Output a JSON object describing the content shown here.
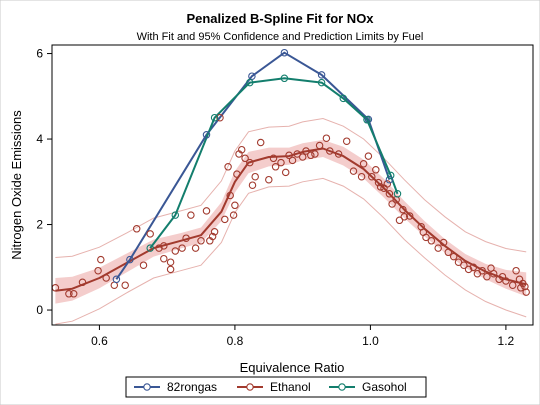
{
  "chart_data": {
    "type": "scatter",
    "title": "Penalized B-Spline Fit for NOx",
    "subtitle": "With Fit and 95% Confidence and Prediction Limits by Fuel",
    "xlabel": "Equivalence Ratio",
    "ylabel": "Nitrogen Oxide Emissions",
    "xlim": [
      0.53,
      1.24
    ],
    "ylim": [
      -0.35,
      6.2
    ],
    "xticks": [
      0.6,
      0.8,
      1.0,
      1.2
    ],
    "yticks": [
      0,
      2,
      4,
      6
    ],
    "xtick_labels": [
      "0.6",
      "0.8",
      "1.0",
      "1.2"
    ],
    "ytick_labels": [
      "0",
      "2",
      "4",
      "6"
    ],
    "grid": false,
    "legend_position": "bottom",
    "colors": {
      "82rongas": "#3A5795",
      "Ethanol": "#A23A2E",
      "Gasohol": "#137E6D",
      "confidence_band": "#F3C8C6",
      "prediction_limits": "#E6B2AE"
    },
    "series": [
      {
        "name": "82rongas",
        "x": [
          0.625,
          0.645,
          0.758,
          0.825,
          0.873,
          0.928,
          0.997,
          1.028
        ],
        "y": [
          0.72,
          1.18,
          4.1,
          5.47,
          6.02,
          5.5,
          4.46,
          3.05
        ],
        "points": [
          [
            0.625,
            0.72
          ],
          [
            0.645,
            1.18
          ],
          [
            0.758,
            4.1
          ],
          [
            0.825,
            5.47
          ],
          [
            0.873,
            6.02
          ],
          [
            0.928,
            5.5
          ],
          [
            0.997,
            4.46
          ],
          [
            1.028,
            3.05
          ]
        ]
      },
      {
        "name": "Ethanol",
        "points": [
          [
            0.535,
            0.52
          ],
          [
            0.555,
            0.38
          ],
          [
            0.562,
            0.38
          ],
          [
            0.575,
            0.65
          ],
          [
            0.598,
            0.92
          ],
          [
            0.602,
            1.18
          ],
          [
            0.61,
            0.75
          ],
          [
            0.622,
            0.58
          ],
          [
            0.638,
            0.58
          ],
          [
            0.655,
            1.9
          ],
          [
            0.665,
            1.05
          ],
          [
            0.675,
            1.78
          ],
          [
            0.688,
            1.45
          ],
          [
            0.695,
            1.2
          ],
          [
            0.695,
            1.5
          ],
          [
            0.705,
            0.95
          ],
          [
            0.705,
            1.12
          ],
          [
            0.712,
            1.38
          ],
          [
            0.722,
            1.45
          ],
          [
            0.728,
            1.68
          ],
          [
            0.735,
            2.22
          ],
          [
            0.742,
            1.45
          ],
          [
            0.75,
            1.62
          ],
          [
            0.758,
            2.32
          ],
          [
            0.763,
            1.62
          ],
          [
            0.767,
            1.72
          ],
          [
            0.77,
            1.83
          ],
          [
            0.778,
            4.5
          ],
          [
            0.785,
            2.12
          ],
          [
            0.79,
            3.35
          ],
          [
            0.793,
            2.68
          ],
          [
            0.798,
            2.22
          ],
          [
            0.8,
            2.45
          ],
          [
            0.803,
            3.18
          ],
          [
            0.806,
            3.65
          ],
          [
            0.81,
            3.75
          ],
          [
            0.815,
            3.55
          ],
          [
            0.822,
            3.45
          ],
          [
            0.826,
            2.92
          ],
          [
            0.83,
            3.12
          ],
          [
            0.838,
            3.92
          ],
          [
            0.85,
            3.05
          ],
          [
            0.857,
            3.55
          ],
          [
            0.86,
            3.35
          ],
          [
            0.868,
            3.45
          ],
          [
            0.875,
            3.22
          ],
          [
            0.88,
            3.62
          ],
          [
            0.885,
            3.5
          ],
          [
            0.892,
            3.65
          ],
          [
            0.9,
            3.58
          ],
          [
            0.905,
            3.72
          ],
          [
            0.912,
            3.62
          ],
          [
            0.918,
            3.65
          ],
          [
            0.925,
            3.85
          ],
          [
            0.935,
            4.02
          ],
          [
            0.94,
            3.72
          ],
          [
            0.953,
            3.65
          ],
          [
            0.965,
            3.95
          ],
          [
            0.975,
            3.25
          ],
          [
            0.987,
            3.12
          ],
          [
            0.99,
            3.42
          ],
          [
            0.997,
            3.6
          ],
          [
            1.002,
            3.12
          ],
          [
            1.008,
            3.28
          ],
          [
            1.012,
            2.98
          ],
          [
            1.015,
            2.88
          ],
          [
            1.02,
            2.85
          ],
          [
            1.025,
            2.95
          ],
          [
            1.028,
            2.72
          ],
          [
            1.032,
            2.48
          ],
          [
            1.038,
            2.58
          ],
          [
            1.043,
            2.1
          ],
          [
            1.048,
            2.35
          ],
          [
            1.05,
            2.18
          ],
          [
            1.058,
            2.2
          ],
          [
            1.075,
            1.95
          ],
          [
            1.078,
            1.82
          ],
          [
            1.082,
            1.7
          ],
          [
            1.09,
            1.62
          ],
          [
            1.1,
            1.45
          ],
          [
            1.108,
            1.58
          ],
          [
            1.115,
            1.35
          ],
          [
            1.123,
            1.25
          ],
          [
            1.13,
            1.12
          ],
          [
            1.138,
            1.05
          ],
          [
            1.145,
            0.95
          ],
          [
            1.152,
            1.0
          ],
          [
            1.158,
            0.85
          ],
          [
            1.165,
            0.92
          ],
          [
            1.172,
            0.78
          ],
          [
            1.178,
            0.98
          ],
          [
            1.182,
            0.85
          ],
          [
            1.19,
            0.72
          ],
          [
            1.195,
            0.78
          ],
          [
            1.2,
            0.68
          ],
          [
            1.21,
            0.58
          ],
          [
            1.215,
            0.92
          ],
          [
            1.22,
            0.72
          ],
          [
            1.222,
            0.52
          ],
          [
            1.225,
            0.62
          ],
          [
            1.228,
            0.55
          ],
          [
            1.23,
            0.42
          ]
        ],
        "fit": {
          "x": [
            0.535,
            0.56,
            0.6,
            0.64,
            0.68,
            0.72,
            0.75,
            0.78,
            0.8,
            0.82,
            0.85,
            0.88,
            0.9,
            0.93,
            0.96,
            0.99,
            1.02,
            1.05,
            1.08,
            1.11,
            1.14,
            1.17,
            1.2,
            1.23
          ],
          "y": [
            0.45,
            0.5,
            0.75,
            1.1,
            1.45,
            1.62,
            1.75,
            2.3,
            3.0,
            3.45,
            3.58,
            3.6,
            3.7,
            3.78,
            3.6,
            3.3,
            2.85,
            2.35,
            1.9,
            1.5,
            1.15,
            0.9,
            0.72,
            0.6
          ]
        },
        "confidence_band_halfwidth": [
          0.3,
          0.28,
          0.24,
          0.22,
          0.2,
          0.18,
          0.18,
          0.22,
          0.25,
          0.25,
          0.22,
          0.2,
          0.2,
          0.2,
          0.22,
          0.22,
          0.22,
          0.2,
          0.18,
          0.16,
          0.16,
          0.18,
          0.22,
          0.28
        ],
        "prediction_limit_halfwidth": [
          0.78,
          0.76,
          0.72,
          0.7,
          0.7,
          0.7,
          0.7,
          0.72,
          0.72,
          0.72,
          0.7,
          0.7,
          0.7,
          0.7,
          0.7,
          0.7,
          0.7,
          0.7,
          0.68,
          0.68,
          0.68,
          0.7,
          0.72,
          0.76
        ]
      },
      {
        "name": "Gasohol",
        "x": [
          0.675,
          0.712,
          0.77,
          0.822,
          0.873,
          0.928,
          0.96,
          0.995,
          1.03,
          1.04
        ],
        "y": [
          1.45,
          2.22,
          4.5,
          5.32,
          5.42,
          5.32,
          4.95,
          4.45,
          3.15,
          2.72
        ],
        "points": [
          [
            0.675,
            1.45
          ],
          [
            0.712,
            2.22
          ],
          [
            0.77,
            4.5
          ],
          [
            0.822,
            5.32
          ],
          [
            0.873,
            5.42
          ],
          [
            0.928,
            5.32
          ],
          [
            0.96,
            4.95
          ],
          [
            0.995,
            4.45
          ],
          [
            1.03,
            3.15
          ],
          [
            1.04,
            2.72
          ]
        ]
      }
    ]
  }
}
